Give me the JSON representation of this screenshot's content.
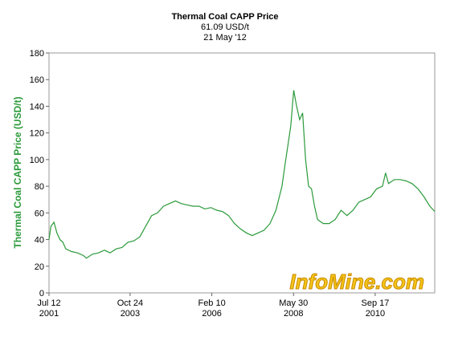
{
  "chart_data": {
    "type": "line",
    "title": "Thermal Coal CAPP Price",
    "subtitle": "61.09 USD/t",
    "date_label": "21 May '12",
    "y_label": "Thermal Coal CAPP Price (USD/t)",
    "watermark": "InfoMine.com",
    "color": "#2a9a3a",
    "x": [
      "2001-07-12",
      "2001-08",
      "2001-09",
      "2001-10",
      "2001-11",
      "2001-12",
      "2002-01",
      "2002-03",
      "2002-05",
      "2002-07",
      "2002-08",
      "2002-10",
      "2002-12",
      "2003-02",
      "2003-04",
      "2003-06",
      "2003-08",
      "2003-10",
      "2003-12",
      "2004-02",
      "2004-04",
      "2004-06",
      "2004-08",
      "2004-10",
      "2004-12",
      "2005-02",
      "2005-04",
      "2005-06",
      "2005-08",
      "2005-10",
      "2005-12",
      "2006-02",
      "2006-04",
      "2006-06",
      "2006-08",
      "2006-10",
      "2006-12",
      "2007-02",
      "2007-04",
      "2007-06",
      "2007-08",
      "2007-10",
      "2007-12",
      "2008-02",
      "2008-03",
      "2008-04",
      "2008-05",
      "2008-06",
      "2008-07",
      "2008-08",
      "2008-09",
      "2008-10",
      "2008-11",
      "2008-12",
      "2009-01",
      "2009-02",
      "2009-04",
      "2009-06",
      "2009-08",
      "2009-10",
      "2009-12",
      "2010-02",
      "2010-04",
      "2010-06",
      "2010-08",
      "2010-10",
      "2010-12",
      "2011-01",
      "2011-02",
      "2011-04",
      "2011-06",
      "2011-08",
      "2011-10",
      "2011-12",
      "2012-02",
      "2012-04",
      "2012-05-21"
    ],
    "values": [
      40,
      50,
      53,
      45,
      40,
      38,
      33,
      31,
      30,
      28,
      26,
      29,
      30,
      32,
      30,
      33,
      34,
      38,
      39,
      42,
      50,
      58,
      60,
      65,
      67,
      69,
      67,
      66,
      65,
      65,
      63,
      64,
      62,
      61,
      58,
      52,
      48,
      45,
      43,
      45,
      47,
      52,
      62,
      80,
      95,
      110,
      125,
      152,
      140,
      130,
      135,
      100,
      80,
      78,
      65,
      55,
      52,
      52,
      55,
      62,
      58,
      62,
      68,
      70,
      72,
      78,
      80,
      90,
      82,
      85,
      85,
      84,
      82,
      78,
      72,
      65,
      61.09
    ],
    "xlim": [
      "2001-07-12",
      "2012-05-21"
    ],
    "xticks": [
      {
        "value": "2001-07-12",
        "label": "Jul 12\n2001"
      },
      {
        "value": "2003-10-24",
        "label": "Oct 24\n2003"
      },
      {
        "value": "2006-02-10",
        "label": "Feb 10\n2006"
      },
      {
        "value": "2008-05-30",
        "label": "May 30\n2008"
      },
      {
        "value": "2010-09-17",
        "label": "Sep 17\n2010"
      }
    ],
    "ylim": [
      0,
      180
    ],
    "yticks": [
      0,
      20,
      40,
      60,
      80,
      100,
      120,
      140,
      160,
      180
    ],
    "grid": false
  }
}
